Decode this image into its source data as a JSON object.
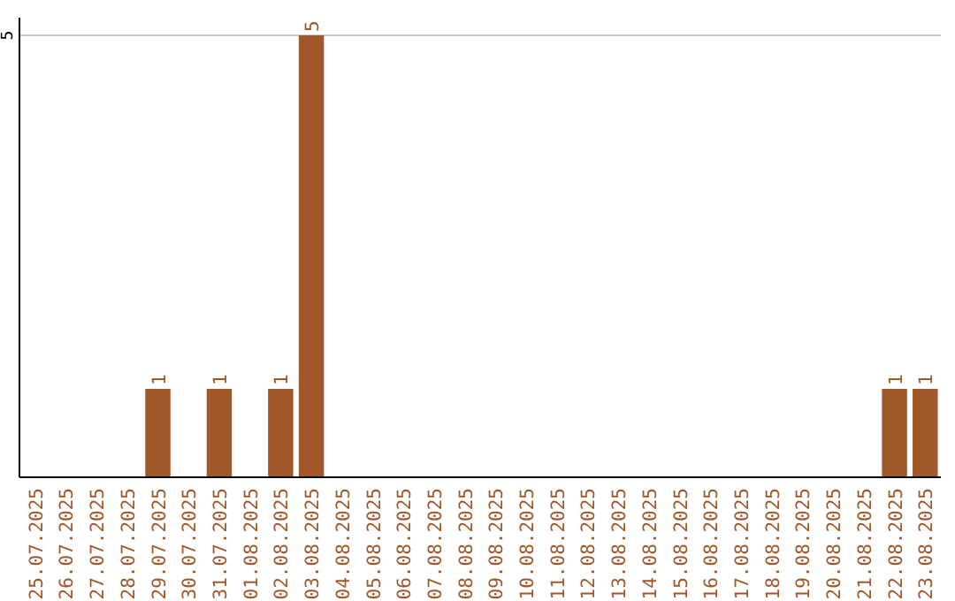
{
  "chart_data": {
    "type": "bar",
    "categories": [
      "25.07.2025",
      "26.07.2025",
      "27.07.2025",
      "28.07.2025",
      "29.07.2025",
      "30.07.2025",
      "31.07.2025",
      "01.08.2025",
      "02.08.2025",
      "03.08.2025",
      "04.08.2025",
      "05.08.2025",
      "06.08.2025",
      "07.08.2025",
      "08.08.2025",
      "09.08.2025",
      "10.08.2025",
      "11.08.2025",
      "12.08.2025",
      "13.08.2025",
      "14.08.2025",
      "15.08.2025",
      "16.08.2025",
      "17.08.2025",
      "18.08.2025",
      "19.08.2025",
      "20.08.2025",
      "21.08.2025",
      "22.08.2025",
      "23.08.2025"
    ],
    "values": [
      0,
      0,
      0,
      0,
      1,
      0,
      1,
      0,
      1,
      5,
      0,
      0,
      0,
      0,
      0,
      0,
      0,
      0,
      0,
      0,
      0,
      0,
      0,
      0,
      0,
      0,
      0,
      0,
      1,
      1
    ],
    "value_labels": [
      null,
      null,
      null,
      null,
      "1",
      null,
      "1",
      null,
      "1",
      "5",
      null,
      null,
      null,
      null,
      null,
      null,
      null,
      null,
      null,
      null,
      null,
      null,
      null,
      null,
      null,
      null,
      null,
      null,
      "1",
      "1"
    ],
    "color": "#a0582a",
    "ylim": [
      0,
      5.2
    ],
    "yticks": [
      5
    ],
    "grid": "y"
  }
}
